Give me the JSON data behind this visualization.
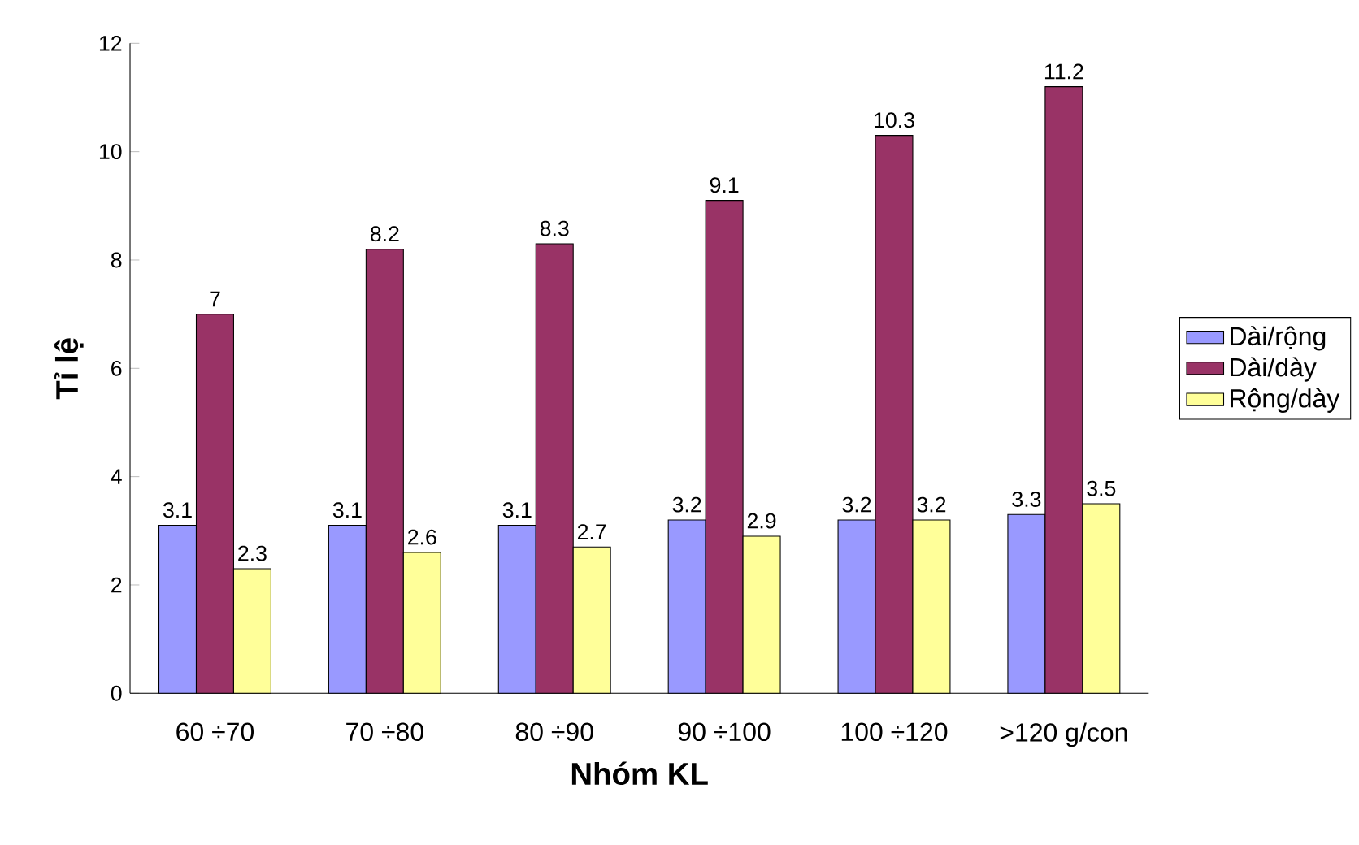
{
  "chart_data": {
    "type": "bar",
    "xlabel": "Nhóm KL",
    "ylabel": "Tỉ lệ",
    "categories": [
      "60 ÷70",
      "70 ÷80",
      "80 ÷90",
      "90 ÷100",
      "100 ÷120",
      ">120 g/con"
    ],
    "series": [
      {
        "name": "Dài/rộng",
        "color": "#9999ff",
        "values": [
          3.1,
          3.1,
          3.1,
          3.2,
          3.2,
          3.3
        ]
      },
      {
        "name": "Dài/dày",
        "color": "#993366",
        "values": [
          7,
          8.2,
          8.3,
          9.1,
          10.3,
          11.2
        ]
      },
      {
        "name": "Rộng/dày",
        "color": "#ffff99",
        "values": [
          2.3,
          2.6,
          2.7,
          2.9,
          3.2,
          3.5
        ]
      }
    ],
    "ylim": [
      0,
      12
    ],
    "yticks": [
      0,
      2,
      4,
      6,
      8,
      10,
      12
    ],
    "data_labels": true,
    "legend": "right",
    "grid": false
  }
}
